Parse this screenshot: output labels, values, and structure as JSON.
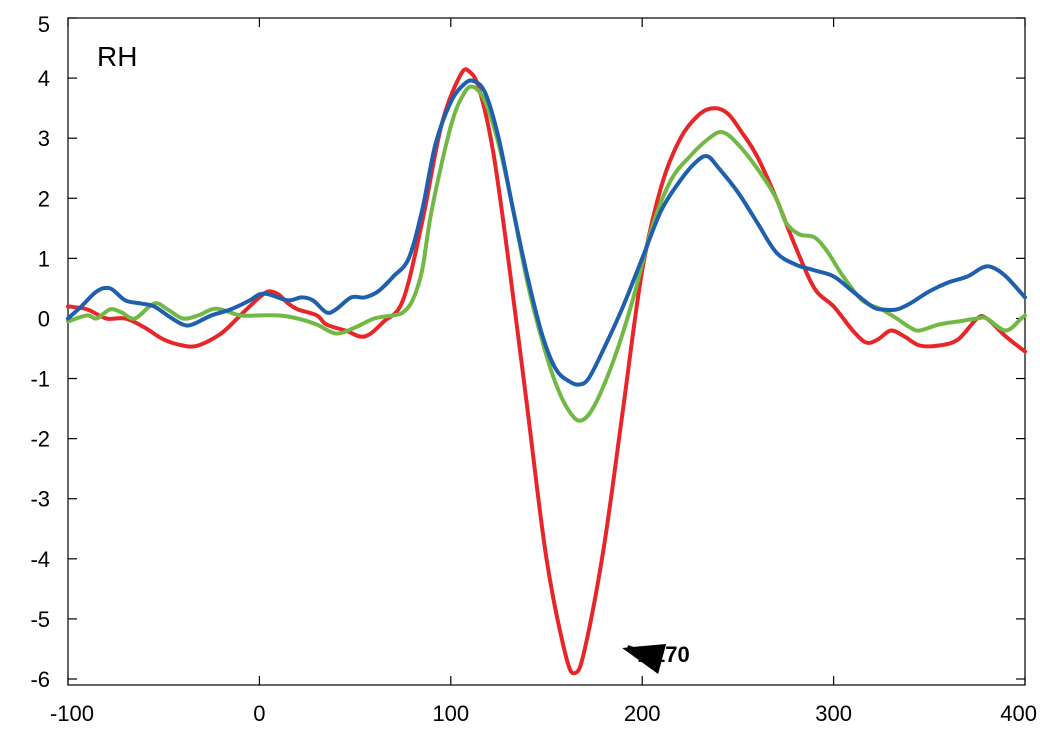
{
  "chart_data": {
    "type": "line",
    "title": "",
    "xlabel": "",
    "ylabel": "",
    "panel_label": "RH",
    "xlim": [
      -100,
      400
    ],
    "ylim": [
      -6.1,
      5
    ],
    "x_ticks": [
      -100,
      0,
      100,
      200,
      300,
      400
    ],
    "y_ticks": [
      5,
      4,
      3,
      2,
      1,
      0,
      -1,
      -2,
      -3,
      -4,
      -5,
      -6
    ],
    "grid": false,
    "legend": "none",
    "annotation": {
      "text": "N170",
      "x": 166,
      "y": -5.9,
      "text_x": 189,
      "text_y": -5.4
    },
    "series": [
      {
        "color": "#e8262a",
        "points": [
          [
            -100,
            0.2
          ],
          [
            -90,
            0.15
          ],
          [
            -80,
            0.0
          ],
          [
            -70,
            0.0
          ],
          [
            -60,
            -0.15
          ],
          [
            -50,
            -0.35
          ],
          [
            -40,
            -0.45
          ],
          [
            -32,
            -0.45
          ],
          [
            -20,
            -0.25
          ],
          [
            -10,
            0.05
          ],
          [
            0,
            0.35
          ],
          [
            5,
            0.45
          ],
          [
            10,
            0.4
          ],
          [
            15,
            0.25
          ],
          [
            20,
            0.15
          ],
          [
            30,
            0.05
          ],
          [
            35,
            -0.1
          ],
          [
            45,
            -0.2
          ],
          [
            55,
            -0.3
          ],
          [
            65,
            -0.05
          ],
          [
            75,
            0.3
          ],
          [
            85,
            1.6
          ],
          [
            95,
            3.2
          ],
          [
            105,
            4.05
          ],
          [
            110,
            4.1
          ],
          [
            115,
            3.8
          ],
          [
            122,
            2.8
          ],
          [
            130,
            1.0
          ],
          [
            140,
            -1.5
          ],
          [
            150,
            -4.0
          ],
          [
            160,
            -5.6
          ],
          [
            165,
            -5.9
          ],
          [
            170,
            -5.5
          ],
          [
            180,
            -3.8
          ],
          [
            190,
            -1.5
          ],
          [
            200,
            0.8
          ],
          [
            210,
            2.2
          ],
          [
            220,
            3.0
          ],
          [
            230,
            3.4
          ],
          [
            238,
            3.5
          ],
          [
            245,
            3.4
          ],
          [
            252,
            3.1
          ],
          [
            260,
            2.7
          ],
          [
            270,
            2.0
          ],
          [
            280,
            1.2
          ],
          [
            290,
            0.5
          ],
          [
            300,
            0.2
          ],
          [
            310,
            -0.2
          ],
          [
            317,
            -0.4
          ],
          [
            323,
            -0.35
          ],
          [
            330,
            -0.2
          ],
          [
            337,
            -0.3
          ],
          [
            345,
            -0.45
          ],
          [
            355,
            -0.45
          ],
          [
            365,
            -0.35
          ],
          [
            375,
            0.0
          ],
          [
            380,
            0.0
          ],
          [
            390,
            -0.3
          ],
          [
            400,
            -0.55
          ]
        ]
      },
      {
        "color": "#72b844",
        "points": [
          [
            -100,
            -0.05
          ],
          [
            -90,
            0.05
          ],
          [
            -85,
            0.0
          ],
          [
            -78,
            0.15
          ],
          [
            -72,
            0.1
          ],
          [
            -65,
            0.0
          ],
          [
            -55,
            0.25
          ],
          [
            -48,
            0.15
          ],
          [
            -40,
            0.0
          ],
          [
            -32,
            0.05
          ],
          [
            -25,
            0.15
          ],
          [
            -20,
            0.15
          ],
          [
            -10,
            0.05
          ],
          [
            0,
            0.05
          ],
          [
            10,
            0.05
          ],
          [
            20,
            0.0
          ],
          [
            30,
            -0.1
          ],
          [
            40,
            -0.25
          ],
          [
            50,
            -0.15
          ],
          [
            60,
            0.0
          ],
          [
            70,
            0.05
          ],
          [
            75,
            0.1
          ],
          [
            80,
            0.3
          ],
          [
            85,
            0.8
          ],
          [
            90,
            1.8
          ],
          [
            100,
            3.2
          ],
          [
            107,
            3.75
          ],
          [
            112,
            3.85
          ],
          [
            118,
            3.6
          ],
          [
            125,
            2.9
          ],
          [
            132,
            1.9
          ],
          [
            140,
            0.6
          ],
          [
            148,
            -0.4
          ],
          [
            155,
            -1.1
          ],
          [
            162,
            -1.55
          ],
          [
            168,
            -1.7
          ],
          [
            175,
            -1.45
          ],
          [
            185,
            -0.7
          ],
          [
            195,
            0.3
          ],
          [
            205,
            1.5
          ],
          [
            215,
            2.3
          ],
          [
            225,
            2.7
          ],
          [
            235,
            3.0
          ],
          [
            242,
            3.1
          ],
          [
            250,
            2.9
          ],
          [
            260,
            2.5
          ],
          [
            270,
            2.0
          ],
          [
            275,
            1.6
          ],
          [
            282,
            1.4
          ],
          [
            290,
            1.35
          ],
          [
            297,
            1.1
          ],
          [
            305,
            0.7
          ],
          [
            315,
            0.3
          ],
          [
            325,
            0.15
          ],
          [
            333,
            0.0
          ],
          [
            340,
            -0.15
          ],
          [
            345,
            -0.2
          ],
          [
            355,
            -0.1
          ],
          [
            365,
            -0.05
          ],
          [
            375,
            0.0
          ],
          [
            380,
            0.0
          ],
          [
            390,
            -0.2
          ],
          [
            398,
            0.0
          ],
          [
            400,
            0.05
          ]
        ]
      },
      {
        "color": "#1e5fae",
        "points": [
          [
            -100,
            0.0
          ],
          [
            -93,
            0.2
          ],
          [
            -85,
            0.45
          ],
          [
            -78,
            0.5
          ],
          [
            -70,
            0.3
          ],
          [
            -62,
            0.25
          ],
          [
            -55,
            0.2
          ],
          [
            -48,
            0.05
          ],
          [
            -40,
            -0.1
          ],
          [
            -35,
            -0.1
          ],
          [
            -25,
            0.05
          ],
          [
            -15,
            0.15
          ],
          [
            -5,
            0.3
          ],
          [
            0,
            0.4
          ],
          [
            5,
            0.4
          ],
          [
            15,
            0.3
          ],
          [
            22,
            0.35
          ],
          [
            28,
            0.3
          ],
          [
            35,
            0.1
          ],
          [
            40,
            0.15
          ],
          [
            48,
            0.35
          ],
          [
            55,
            0.35
          ],
          [
            62,
            0.45
          ],
          [
            70,
            0.7
          ],
          [
            78,
            1.0
          ],
          [
            85,
            1.8
          ],
          [
            92,
            2.9
          ],
          [
            100,
            3.6
          ],
          [
            107,
            3.9
          ],
          [
            112,
            3.95
          ],
          [
            118,
            3.75
          ],
          [
            125,
            3.0
          ],
          [
            132,
            1.9
          ],
          [
            140,
            0.7
          ],
          [
            148,
            -0.3
          ],
          [
            155,
            -0.85
          ],
          [
            162,
            -1.05
          ],
          [
            167,
            -1.1
          ],
          [
            172,
            -1.0
          ],
          [
            180,
            -0.5
          ],
          [
            190,
            0.2
          ],
          [
            200,
            1.0
          ],
          [
            210,
            1.8
          ],
          [
            220,
            2.3
          ],
          [
            228,
            2.6
          ],
          [
            234,
            2.7
          ],
          [
            240,
            2.5
          ],
          [
            250,
            2.1
          ],
          [
            260,
            1.6
          ],
          [
            270,
            1.1
          ],
          [
            280,
            0.9
          ],
          [
            290,
            0.8
          ],
          [
            300,
            0.7
          ],
          [
            310,
            0.45
          ],
          [
            320,
            0.2
          ],
          [
            325,
            0.15
          ],
          [
            333,
            0.15
          ],
          [
            340,
            0.25
          ],
          [
            350,
            0.45
          ],
          [
            360,
            0.6
          ],
          [
            370,
            0.7
          ],
          [
            378,
            0.85
          ],
          [
            383,
            0.85
          ],
          [
            390,
            0.7
          ],
          [
            400,
            0.35
          ]
        ]
      }
    ]
  }
}
